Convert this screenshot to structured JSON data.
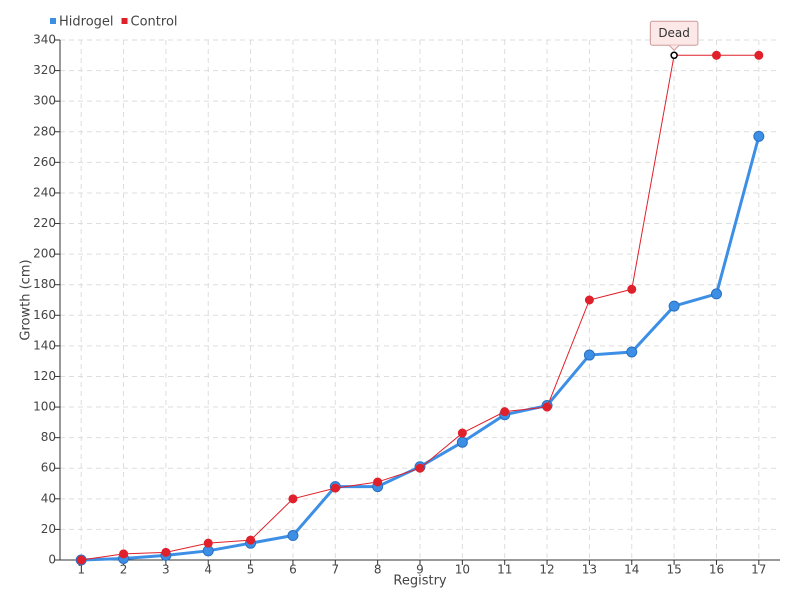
{
  "chart_data": {
    "type": "line",
    "x": [
      1,
      2,
      3,
      4,
      5,
      6,
      7,
      8,
      9,
      10,
      11,
      12,
      13,
      14,
      15,
      16,
      17
    ],
    "series": [
      {
        "name": "Hidrogel",
        "color": "#3d8fe6",
        "values": [
          0,
          1,
          3,
          6,
          11,
          16,
          48,
          48,
          61,
          77,
          95,
          101,
          134,
          136,
          166,
          174,
          277
        ]
      },
      {
        "name": "Control",
        "color": "#e0202a",
        "values": [
          0,
          4,
          5,
          11,
          13,
          40,
          47,
          51,
          60,
          83,
          97,
          100,
          170,
          177,
          330,
          330,
          330
        ]
      }
    ],
    "xlim": [
      0.5,
      17.5
    ],
    "xticks": [
      1,
      2,
      3,
      4,
      5,
      6,
      7,
      8,
      9,
      10,
      11,
      12,
      13,
      14,
      15,
      16,
      17
    ],
    "ylim": [
      0,
      340
    ],
    "yticks": [
      0,
      20,
      40,
      60,
      80,
      100,
      120,
      140,
      160,
      180,
      200,
      220,
      240,
      260,
      280,
      300,
      320,
      340
    ],
    "xlabel": "Registry",
    "ylabel": "Growth (cm)",
    "grid": true,
    "annotations": [
      {
        "text": "Dead",
        "series": "Control",
        "x": 15
      }
    ]
  }
}
